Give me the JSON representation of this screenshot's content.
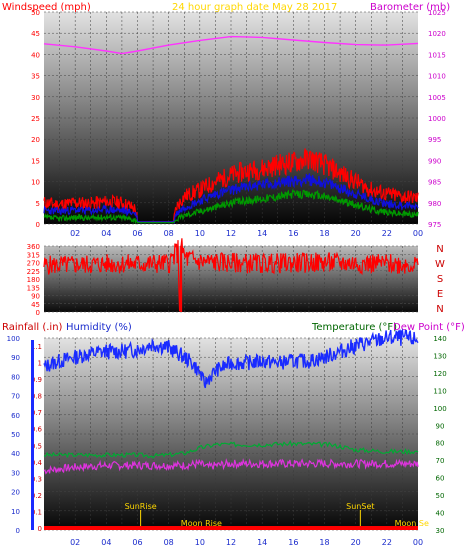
{
  "chart_data": [
    {
      "type": "line",
      "title": "24 hour graph date   May 28 2017",
      "left_axis_label": "Windspeed (mph)",
      "right_axis_label": "Barometer (mb)",
      "x_ticks": [
        "02",
        "04",
        "06",
        "08",
        "10",
        "12",
        "14",
        "16",
        "18",
        "20",
        "22",
        "00"
      ],
      "left_ticks": [
        "0",
        "5",
        "10",
        "15",
        "20",
        "25",
        "30",
        "35",
        "40",
        "45",
        "50"
      ],
      "right_ticks": [
        "975",
        "980",
        "985",
        "990",
        "995",
        "1000",
        "1005",
        "1010",
        "1015",
        "1020",
        "1025"
      ],
      "ylim_left": [
        0,
        50
      ],
      "ylim_right": [
        975,
        1025
      ],
      "series": [
        {
          "name": "Barometer (mb)",
          "axis": "right",
          "color": "#ff33ff",
          "x": [
            0,
            2,
            4,
            5,
            6,
            8,
            10,
            12,
            14,
            16,
            18,
            20,
            22,
            24
          ],
          "y": [
            1017.5,
            1016.8,
            1015.8,
            1015.2,
            1015.8,
            1017.2,
            1018.3,
            1019.2,
            1019.0,
            1018.4,
            1017.8,
            1017.3,
            1017.2,
            1017.6
          ]
        },
        {
          "name": "Wind gust (mph)",
          "axis": "left",
          "color": "#ff0000",
          "x": [
            0,
            1,
            2,
            3,
            4,
            5,
            5.9,
            6,
            8.3,
            8.5,
            9,
            10,
            11,
            12,
            13,
            14,
            15,
            16,
            17,
            18,
            19,
            20,
            21,
            22,
            23,
            24
          ],
          "y": [
            5,
            4.5,
            5,
            4.8,
            5.2,
            5,
            3.5,
            0.5,
            0.5,
            4,
            6.5,
            8,
            10,
            11.5,
            12.5,
            13,
            14,
            14.5,
            15.5,
            14,
            12,
            10,
            8,
            7,
            6.5,
            6
          ]
        },
        {
          "name": "Wind average (mph)",
          "axis": "left",
          "color": "#1010dd",
          "x": [
            0,
            1,
            2,
            3,
            4,
            5,
            5.9,
            6,
            8.3,
            8.5,
            9,
            10,
            11,
            12,
            13,
            14,
            15,
            16,
            17,
            18,
            19,
            20,
            21,
            22,
            23,
            24
          ],
          "y": [
            3.2,
            3,
            3.3,
            3.1,
            3.4,
            3.2,
            2.5,
            0.5,
            0.5,
            2.5,
            4,
            5.5,
            7,
            8,
            8.8,
            9.3,
            9.8,
            10.2,
            10.5,
            9.8,
            8.5,
            7,
            5.8,
            4.8,
            4.4,
            4.2
          ]
        },
        {
          "name": "Wind low (mph)",
          "axis": "left",
          "color": "#009900",
          "x": [
            0,
            1,
            2,
            3,
            4,
            5,
            5.9,
            6,
            8.3,
            8.5,
            9,
            10,
            11,
            12,
            13,
            14,
            15,
            16,
            17,
            18,
            19,
            20,
            21,
            22,
            23,
            24
          ],
          "y": [
            1.5,
            1.3,
            1.6,
            1.4,
            1.7,
            1.5,
            1,
            0.3,
            0.3,
            1,
            2,
            3,
            4,
            5,
            5.5,
            6,
            6.5,
            7,
            7,
            6.5,
            5.5,
            4.5,
            3.5,
            2.8,
            2.4,
            2.2
          ]
        }
      ]
    },
    {
      "type": "line",
      "left_ticks": [
        "0",
        "45",
        "90",
        "135",
        "180",
        "225",
        "270",
        "315",
        "360"
      ],
      "direction_labels": [
        "N",
        "W",
        "S",
        "E",
        "N"
      ],
      "ylim": [
        0,
        360
      ],
      "x_ticks": [
        "02",
        "04",
        "06",
        "08",
        "10",
        "12",
        "14",
        "16",
        "18",
        "20",
        "22",
        "00"
      ],
      "series": [
        {
          "name": "Wind direction (deg)",
          "color": "#ff0000",
          "x": [
            0,
            2,
            4,
            6,
            8,
            8.6,
            8.7,
            8.8,
            8.9,
            9.0,
            9.2,
            10,
            12,
            14,
            16,
            18,
            20,
            22,
            24
          ],
          "y": [
            255,
            258,
            262,
            263,
            265,
            335,
            5,
            330,
            345,
            300,
            290,
            275,
            268,
            265,
            268,
            270,
            266,
            264,
            258
          ]
        }
      ]
    },
    {
      "type": "line",
      "left_axis_label": "Rainfall (.in)",
      "middle_axis_label": "Humidity (%)",
      "right_axis_label": "Temperature (°F)",
      "right_axis_label_2": "Dew Point (°F)",
      "rain_ticks": [
        "0",
        "0.1",
        "0.2",
        "0.3",
        "0.4",
        "0.5",
        "0.6",
        "0.7",
        "0.8",
        "0.9",
        "1",
        "1.1"
      ],
      "humidity_ticks": [
        "0",
        "10",
        "20",
        "30",
        "40",
        "50",
        "60",
        "70",
        "80",
        "90",
        "100"
      ],
      "temp_ticks": [
        "30",
        "40",
        "50",
        "60",
        "70",
        "80",
        "90",
        "100",
        "110",
        "120",
        "130",
        "140"
      ],
      "ylim_humidity": [
        0,
        100
      ],
      "ylim_temp": [
        30,
        140
      ],
      "x_ticks": [
        "02",
        "04",
        "06",
        "08",
        "10",
        "12",
        "14",
        "16",
        "18",
        "20",
        "22",
        "00"
      ],
      "annotations": [
        {
          "text": "SunRise",
          "x": 6.2
        },
        {
          "text": "Moon Rise",
          "x": 10.1
        },
        {
          "text": "SunSet",
          "x": 20.3
        },
        {
          "text": "Moon Se",
          "x": 23.6
        }
      ],
      "series": [
        {
          "name": "Humidity (%)",
          "axis": "humidity",
          "color": "#1a2bff",
          "x": [
            0,
            1,
            2,
            3,
            4,
            5,
            6,
            7,
            8,
            9,
            9.5,
            10,
            10.3,
            10.6,
            11,
            12,
            13,
            14,
            15,
            16,
            17,
            18,
            19,
            20,
            21,
            22,
            23,
            24
          ],
          "y": [
            85,
            88,
            90,
            92,
            93,
            93,
            94,
            97,
            95,
            90,
            87,
            82,
            76,
            79,
            83,
            87,
            87,
            88,
            87,
            88,
            88,
            90,
            93,
            96,
            98,
            100,
            100,
            99
          ]
        },
        {
          "name": "Temperature (°F)",
          "axis": "temp",
          "color": "#00aa33",
          "x": [
            0,
            2,
            4,
            6,
            7,
            8,
            9,
            10,
            11,
            12,
            14,
            16,
            18,
            19,
            20,
            22,
            24
          ],
          "y": [
            73,
            73,
            73,
            73,
            72.5,
            73,
            74,
            77,
            79,
            79,
            79,
            79.5,
            79,
            78,
            76,
            75,
            75
          ]
        },
        {
          "name": "Dew Point (°F)",
          "axis": "temp",
          "color": "#dd33dd",
          "x": [
            0,
            1,
            2,
            4,
            6,
            8,
            9,
            10,
            10.5,
            11,
            12,
            14,
            16,
            18,
            20,
            22,
            24
          ],
          "y": [
            64,
            65,
            66,
            67,
            67,
            67,
            67,
            68,
            66,
            67,
            68,
            68,
            68,
            68,
            68,
            68,
            68
          ]
        }
      ]
    }
  ]
}
